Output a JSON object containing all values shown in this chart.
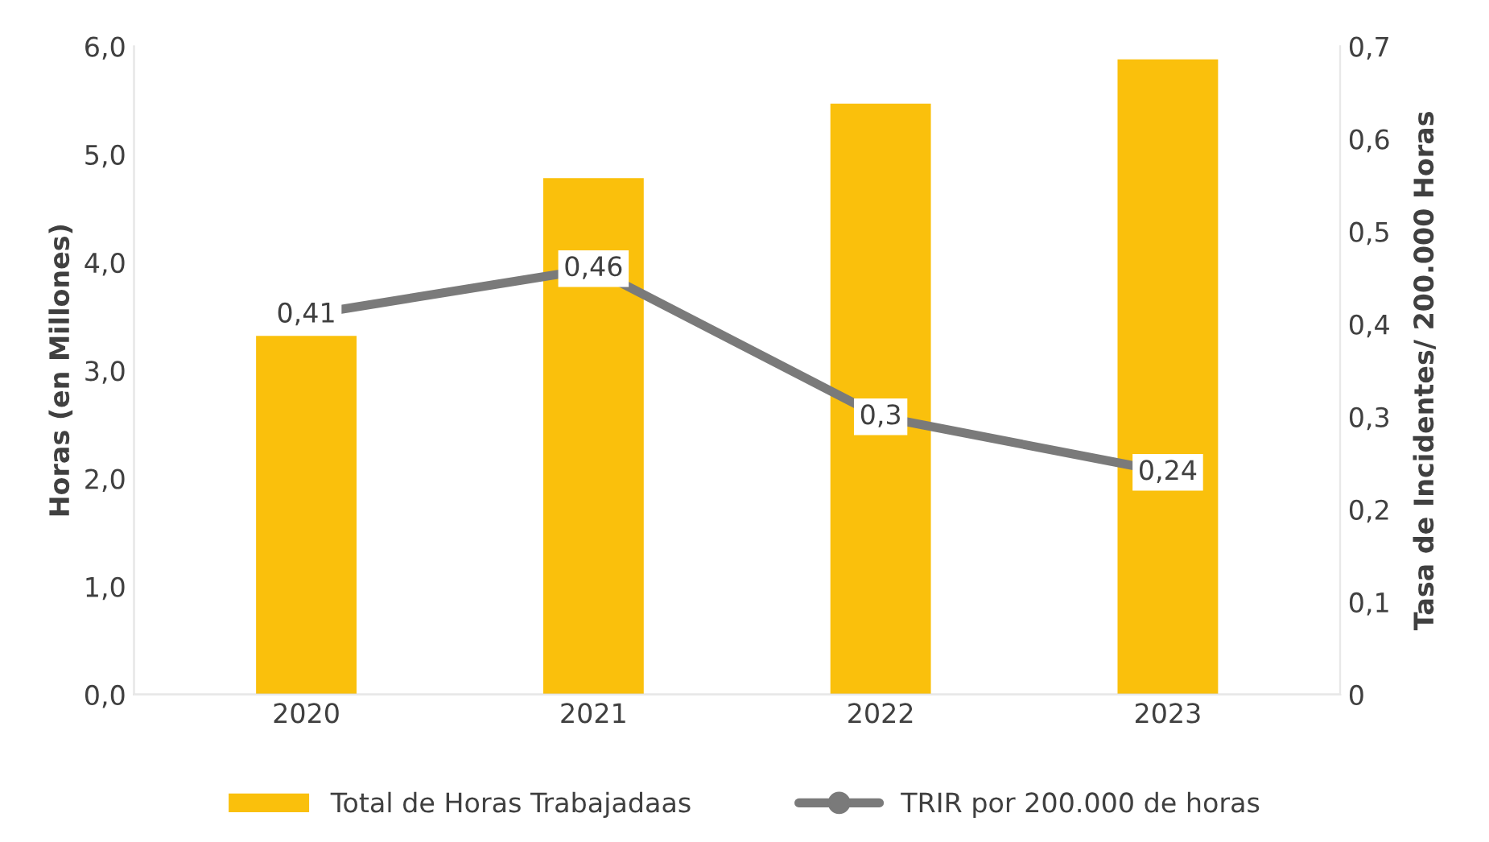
{
  "chart_data": {
    "type": "bar",
    "categories": [
      "2020",
      "2021",
      "2022",
      "2023"
    ],
    "ylabel": "Horas (en Millones)",
    "y2label": "Tasa de Incidentes/ 200.000 Horas",
    "ylim": [
      0,
      6
    ],
    "yticks": [
      {
        "value": 0,
        "label": "0,0"
      },
      {
        "value": 1,
        "label": "1,0"
      },
      {
        "value": 2,
        "label": "2,0"
      },
      {
        "value": 3,
        "label": "3,0"
      },
      {
        "value": 4,
        "label": "4,0"
      },
      {
        "value": 5,
        "label": "5,0"
      },
      {
        "value": 6,
        "label": "6,0"
      }
    ],
    "y2lim": [
      0,
      0.7
    ],
    "y2ticks": [
      0,
      {
        "value": 0.1,
        "label": "0,1"
      },
      {
        "value": 0.2,
        "label": "0,2"
      },
      {
        "value": 0.3,
        "label": "0,3"
      },
      {
        "value": 0.4,
        "label": "0,4"
      },
      {
        "value": 0.5,
        "label": "0,5"
      },
      {
        "value": 0.6,
        "label": "0,6"
      },
      {
        "value": 0.7,
        "label": "0,7"
      }
    ],
    "series": [
      {
        "name": "Total de Horas Trabajadaas",
        "color": "#fac00c",
        "values": [
          3.32,
          4.78,
          5.47,
          5.88
        ]
      },
      {
        "name": "TRIR por 200.000 de horas",
        "type": "line",
        "axis": "y2",
        "color": "#7a7a7a",
        "marker": "circle",
        "values": [
          0.41,
          0.46,
          0.3,
          0.24
        ],
        "value_labels": [
          "0,41",
          "0,46",
          "0,3",
          "0,24"
        ]
      }
    ],
    "legend": "bottom",
    "grid": false
  }
}
